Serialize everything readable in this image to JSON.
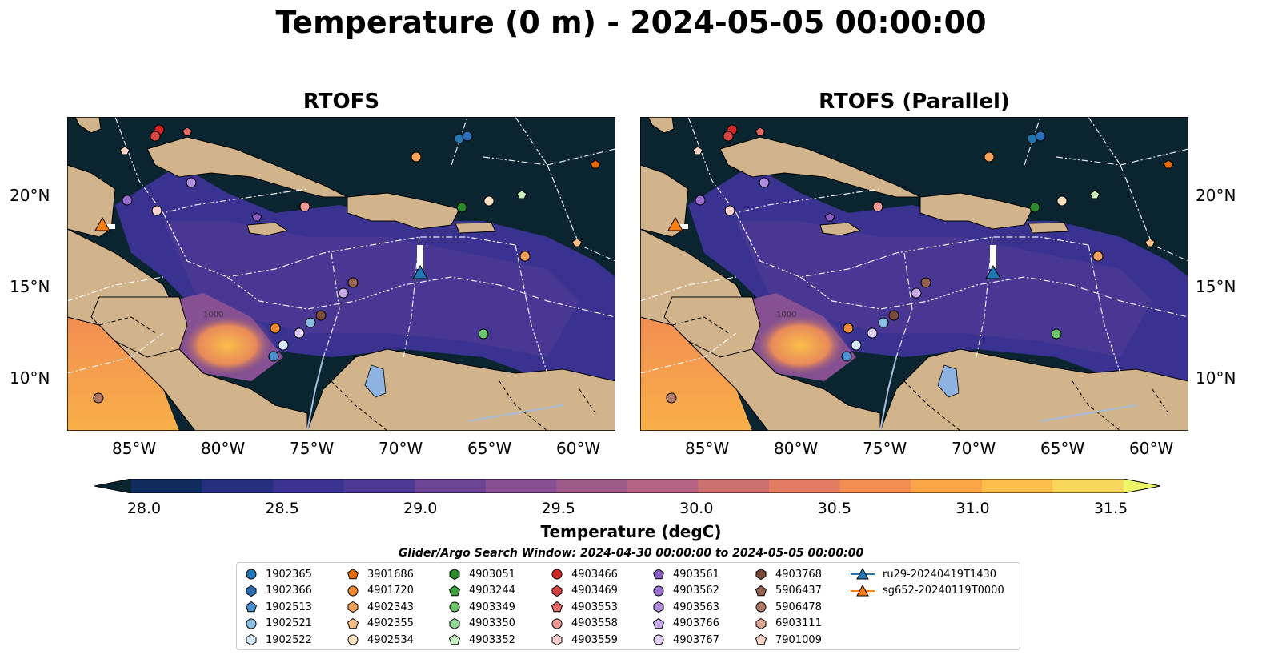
{
  "title": "Temperature (0 m) - 2024-05-05 00:00:00",
  "panels": [
    {
      "title": "RTOFS"
    },
    {
      "title": "RTOFS (Parallel)"
    }
  ],
  "map": {
    "lon_range": [
      -89.0,
      -58.0
    ],
    "lat_range": [
      7.0,
      24.5
    ],
    "lon_ticks": [
      "85°W",
      "80°W",
      "75°W",
      "70°W",
      "65°W",
      "60°W"
    ],
    "lat_ticks": [
      "10°N",
      "15°N",
      "20°N"
    ],
    "contour_label": "1000",
    "colors": {
      "ocean_deep": "#0a2430",
      "land": "#d2b48c",
      "lake": "#8fb3e0",
      "river": "#a6bddb"
    }
  },
  "colorbar": {
    "label": "Temperature (degC)",
    "ticks": [
      "28.0",
      "28.5",
      "29.0",
      "29.5",
      "30.0",
      "30.5",
      "31.0",
      "31.5"
    ],
    "range": [
      28.0,
      31.5
    ],
    "colors": [
      "#0a2430",
      "#102c5e",
      "#262f7e",
      "#3a3290",
      "#4d3a94",
      "#6c4694",
      "#865092",
      "#9e5b8a",
      "#b56581",
      "#cd7070",
      "#e27c62",
      "#f28e52",
      "#f9a548",
      "#fbbe4a",
      "#f7d85a",
      "#eef567"
    ]
  },
  "search_window": "Glider/Argo Search Window: 2024-04-30 00:00:00 to 2024-05-05 00:00:00",
  "legend": [
    {
      "label": "1902365",
      "marker": "circle",
      "color": "#1f77b4"
    },
    {
      "label": "1902366",
      "marker": "hexagon",
      "color": "#2a6fb8"
    },
    {
      "label": "1902513",
      "marker": "pentagon",
      "color": "#4a8fd0"
    },
    {
      "label": "1902521",
      "marker": "circle",
      "color": "#8cbfe6"
    },
    {
      "label": "1902522",
      "marker": "hexagon",
      "color": "#d4e8f8"
    },
    {
      "label": "3901686",
      "marker": "pentagon",
      "color": "#e66a00"
    },
    {
      "label": "4901720",
      "marker": "circle",
      "color": "#f28a30"
    },
    {
      "label": "4902343",
      "marker": "hexagon",
      "color": "#f5a25a"
    },
    {
      "label": "4902355",
      "marker": "pentagon",
      "color": "#f8c088"
    },
    {
      "label": "4902534",
      "marker": "circle",
      "color": "#fde2c2"
    },
    {
      "label": "4903051",
      "marker": "hexagon",
      "color": "#2b8a2b"
    },
    {
      "label": "4903244",
      "marker": "pentagon",
      "color": "#3fa03f"
    },
    {
      "label": "4903349",
      "marker": "circle",
      "color": "#6cc46c"
    },
    {
      "label": "4903350",
      "marker": "hexagon",
      "color": "#98da98"
    },
    {
      "label": "4903352",
      "marker": "pentagon",
      "color": "#c8f0c0"
    },
    {
      "label": "4903466",
      "marker": "circle",
      "color": "#d62728"
    },
    {
      "label": "4903469",
      "marker": "hexagon",
      "color": "#dc4545"
    },
    {
      "label": "4903553",
      "marker": "pentagon",
      "color": "#e66a6a"
    },
    {
      "label": "4903558",
      "marker": "circle",
      "color": "#f09898"
    },
    {
      "label": "4903559",
      "marker": "hexagon",
      "color": "#fad0d0"
    },
    {
      "label": "4903561",
      "marker": "pentagon",
      "color": "#8a5cc4"
    },
    {
      "label": "4903562",
      "marker": "circle",
      "color": "#9a6fd0"
    },
    {
      "label": "4903563",
      "marker": "hexagon",
      "color": "#b08cdc"
    },
    {
      "label": "4903766",
      "marker": "pentagon",
      "color": "#c8acea"
    },
    {
      "label": "4903767",
      "marker": "circle",
      "color": "#e2cff6"
    },
    {
      "label": "4903768",
      "marker": "hexagon",
      "color": "#7a4a3a"
    },
    {
      "label": "5906437",
      "marker": "pentagon",
      "color": "#946050"
    },
    {
      "label": "5906478",
      "marker": "circle",
      "color": "#b07a68"
    },
    {
      "label": "6903111",
      "marker": "hexagon",
      "color": "#e0a898"
    },
    {
      "label": "7901009",
      "marker": "pentagon",
      "color": "#f8d4c8"
    },
    {
      "label": "ru29-20240419T1430",
      "marker": "triangle-line",
      "color": "#1f77b4"
    },
    {
      "label": "sg652-20240119T0000",
      "marker": "triangle-line",
      "color": "#ff7f0e"
    }
  ]
}
